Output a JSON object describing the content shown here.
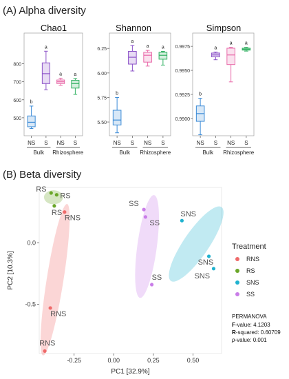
{
  "panel_a_title": "(A) Alpha diversity",
  "panel_b_title": "(B) Beta diversity",
  "colors": {
    "NS": "#3a8ad6",
    "S": "#8a4fc7",
    "RNS": "#e868a8",
    "RS": "#2fb060"
  },
  "chart_data": [
    {
      "type": "boxplot",
      "title": "Chao1",
      "ylim": [
        400,
        940
      ],
      "yticks": [
        500,
        600,
        700,
        800
      ],
      "ytick_labels": [
        "500",
        "600",
        "700",
        "800"
      ],
      "groups": [
        {
          "label": "NS",
          "parent": "Bulk",
          "color": "NS",
          "min": 440,
          "q1": 450,
          "median": 475,
          "q3": 510,
          "max": 565,
          "letter": "b"
        },
        {
          "label": "S",
          "parent": "Bulk",
          "color": "S",
          "min": 655,
          "q1": 690,
          "median": 745,
          "q3": 805,
          "max": 870,
          "letter": "a"
        },
        {
          "label": "NS",
          "parent": "Rhizosphere",
          "color": "RNS",
          "min": 680,
          "q1": 690,
          "median": 700,
          "q3": 710,
          "max": 720,
          "letter": "a"
        },
        {
          "label": "S",
          "parent": "Rhizosphere",
          "color": "RS",
          "min": 630,
          "q1": 665,
          "median": 690,
          "q3": 708,
          "max": 718,
          "letter": "a"
        }
      ],
      "group_labels": [
        "Bulk",
        "Rhizosphere"
      ]
    },
    {
      "type": "boxplot",
      "title": "Shannon",
      "ylim": [
        5.36,
        6.35
      ],
      "yticks": [
        5.5,
        5.75,
        6.0,
        6.25
      ],
      "ytick_labels": [
        "5.50",
        "5.75",
        "6.00",
        "6.25"
      ],
      "groups": [
        {
          "label": "NS",
          "parent": "Bulk",
          "color": "NS",
          "min": 5.39,
          "q1": 5.47,
          "median": 5.52,
          "q3": 5.62,
          "max": 5.75,
          "letter": "b"
        },
        {
          "label": "S",
          "parent": "Bulk",
          "color": "S",
          "min": 6.02,
          "q1": 6.09,
          "median": 6.16,
          "q3": 6.22,
          "max": 6.28,
          "letter": "a"
        },
        {
          "label": "NS",
          "parent": "Rhizosphere",
          "color": "RNS",
          "min": 6.07,
          "q1": 6.11,
          "median": 6.18,
          "q3": 6.21,
          "max": 6.23,
          "letter": "a"
        },
        {
          "label": "S",
          "parent": "Rhizosphere",
          "color": "RS",
          "min": 6.08,
          "q1": 6.14,
          "median": 6.18,
          "q3": 6.21,
          "max": 6.22,
          "letter": "a"
        }
      ],
      "group_labels": [
        "Bulk",
        "Rhizosphere"
      ]
    },
    {
      "type": "boxplot",
      "title": "Simpson",
      "ylim": [
        0.9882,
        0.9983
      ],
      "yticks": [
        0.99,
        0.9925,
        0.995,
        0.9975
      ],
      "ytick_labels": [
        "0.9900",
        "0.9925",
        "0.9950",
        "0.9975"
      ],
      "groups": [
        {
          "label": "NS",
          "parent": "Bulk",
          "color": "NS",
          "min": 0.9883,
          "q1": 0.9897,
          "median": 0.9905,
          "q3": 0.9913,
          "max": 0.9921,
          "letter": "b"
        },
        {
          "label": "S",
          "parent": "Bulk",
          "color": "S",
          "min": 0.9961,
          "q1": 0.9964,
          "median": 0.9966,
          "q3": 0.9968,
          "max": 0.9969,
          "letter": "a"
        },
        {
          "label": "NS",
          "parent": "Rhizosphere",
          "color": "RNS",
          "min": 0.9938,
          "q1": 0.9956,
          "median": 0.9966,
          "q3": 0.9973,
          "max": 0.9974,
          "letter": "a"
        },
        {
          "label": "S",
          "parent": "Rhizosphere",
          "color": "RS",
          "min": 0.997,
          "q1": 0.9971,
          "median": 0.9972,
          "q3": 0.9973,
          "max": 0.9974,
          "letter": "a"
        }
      ],
      "group_labels": [
        "Bulk",
        "Rhizosphere"
      ]
    },
    {
      "type": "scatter",
      "title": "",
      "xlabel": "PC1 [32.9%]",
      "ylabel": "PC2 [10.3%]",
      "xlim": [
        -0.47,
        0.68
      ],
      "ylim": [
        -0.9,
        0.45
      ],
      "xticks": [
        -0.25,
        0.0,
        0.25,
        0.5
      ],
      "xtick_labels": [
        "-0.25",
        "0.00",
        "0.25",
        "0.50"
      ],
      "yticks": [
        0.0,
        -0.5
      ],
      "ytick_labels": [
        "0.0",
        "-0.5"
      ],
      "grid": false,
      "legend_title": "Treatment",
      "legend_position": "right",
      "series": [
        {
          "name": "RNS",
          "color": "RNS",
          "points": [
            {
              "x": -0.31,
              "y": 0.25,
              "label": "RNS"
            },
            {
              "x": -0.4,
              "y": -0.53,
              "label": "RNS"
            },
            {
              "x": -0.435,
              "y": -0.88,
              "label": "RNS"
            }
          ]
        },
        {
          "name": "RS",
          "color": "RS",
          "points": [
            {
              "x": -0.395,
              "y": 0.405,
              "label": "RS"
            },
            {
              "x": -0.36,
              "y": 0.39,
              "label": "RS"
            },
            {
              "x": -0.375,
              "y": 0.3,
              "label": "RS"
            }
          ]
        },
        {
          "name": "SNS",
          "color": "SNS",
          "points": [
            {
              "x": 0.43,
              "y": 0.18,
              "label": "SNS"
            },
            {
              "x": 0.6,
              "y": -0.11,
              "label": "SNS"
            },
            {
              "x": 0.63,
              "y": -0.21,
              "label": "SNS"
            }
          ]
        },
        {
          "name": "SS",
          "color": "SS",
          "points": [
            {
              "x": 0.19,
              "y": 0.27,
              "label": "SS"
            },
            {
              "x": 0.2,
              "y": 0.21,
              "label": "SS"
            },
            {
              "x": 0.24,
              "y": -0.34,
              "label": "SS"
            }
          ]
        }
      ],
      "ellipses": [
        {
          "series": "RNS",
          "cx": -0.37,
          "cy": -0.3,
          "rx": 0.62,
          "ry": 0.06,
          "angle_deg": 83
        },
        {
          "series": "RS",
          "cx": -0.38,
          "cy": 0.37,
          "rx": 0.06,
          "ry": 0.05,
          "angle_deg": 0
        },
        {
          "series": "SS",
          "cx": 0.21,
          "cy": -0.03,
          "rx": 0.42,
          "ry": 0.07,
          "angle_deg": 84
        },
        {
          "series": "SNS",
          "cx": 0.52,
          "cy": -0.01,
          "rx": 0.34,
          "ry": 0.09,
          "angle_deg": 62
        }
      ],
      "stats_title": "PERMANOVA",
      "stats": [
        {
          "label": "F-value",
          "value": "4.1203"
        },
        {
          "label": "R-squared",
          "value": "0.60709"
        },
        {
          "label": "p-value",
          "value": "0.001"
        }
      ]
    }
  ],
  "legend_colors": {
    "RNS": "#ef6a6a",
    "RS": "#6aa628",
    "SNS": "#1fb2cf",
    "SS": "#c97de8"
  }
}
